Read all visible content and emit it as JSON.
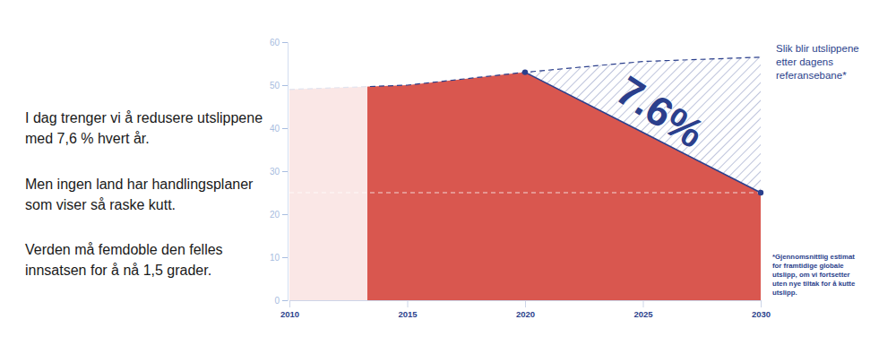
{
  "chart_data": {
    "type": "area",
    "text_box": [
      [
        "I dag trenger vi å redusere utslippene",
        "med 7,6 % hvert år."
      ],
      [
        "Men ingen land har handlingsplaner",
        "som viser så raske kutt."
      ],
      [
        "Verden må femdoble den felles",
        "innsatsen for å nå 1,5 grader."
      ]
    ],
    "annotations": [
      {
        "text": "7.6%"
      },
      {
        "text": [
          "Slik blir utslippene",
          "etter dagens",
          "referansebane*"
        ]
      },
      {
        "text": [
          "*Gjennomsnittlig estimat",
          "for framtidige globale",
          "utslipp, om vi fortsetter",
          "uten nye tiltak for å kutte",
          "utslipp."
        ]
      }
    ],
    "x": [
      2010,
      2015,
      2020,
      2025,
      2030
    ],
    "series": [
      {
        "type": "area",
        "color": "#d9574f",
        "values": [
          49,
          50,
          53,
          39,
          25
        ]
      },
      {
        "type": "line",
        "color": "#2b3f8c",
        "line_style": "dashed",
        "values": [
          49,
          50,
          53,
          55.5,
          56.5
        ]
      },
      {
        "type": "line",
        "color": "#2b3f8c",
        "line_style": "solid",
        "marker": "circle",
        "values": [
          null,
          null,
          53,
          39,
          25
        ]
      }
    ],
    "reference_line": 25,
    "xlim": [
      2010,
      2030
    ],
    "xticks": [
      2010,
      2015,
      2020,
      2025,
      2030
    ],
    "ylim": [
      0,
      60
    ],
    "yticks": [
      0,
      10,
      20,
      30,
      40,
      50,
      60
    ],
    "grid": false
  }
}
